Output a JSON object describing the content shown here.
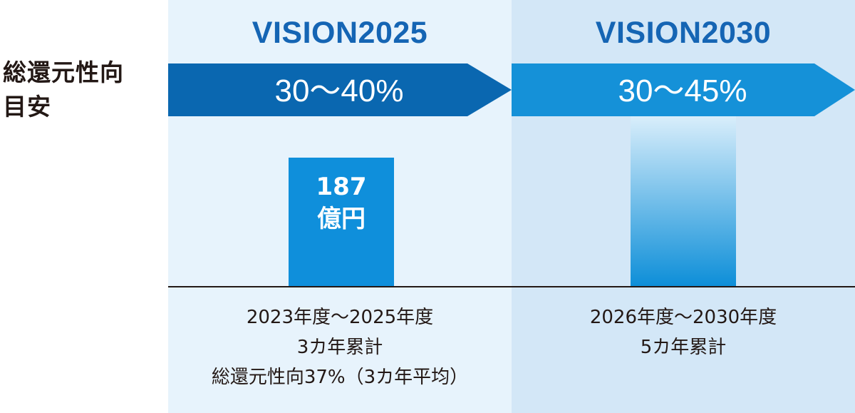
{
  "side_label": {
    "line1": "総還元性向",
    "line2": "目安"
  },
  "colors": {
    "panel_left": "#e7f3fc",
    "panel_right": "#d3e7f7",
    "title": "#1565b4",
    "arrow_left": "#0a67b0",
    "arrow_right": "#1591d8",
    "bar_2025": "#0f8fdb",
    "bar_2030_top": "#d9eefb",
    "bar_2030_bottom": "#0c8ed8",
    "baseline": "#231815"
  },
  "visions": [
    {
      "title": "VISION2025",
      "target": "30〜40%",
      "period_lines": [
        "2023年度〜2025年度",
        "3カ年累計",
        "総還元性向37%（3カ年平均）"
      ]
    },
    {
      "title": "VISION2030",
      "target": "30〜45%",
      "period_lines": [
        "2026年度〜2030年度",
        "5カ年累計"
      ]
    }
  ],
  "chart_data": {
    "type": "bar",
    "categories": [
      "VISION2025",
      "VISION2030"
    ],
    "series": [
      {
        "values": [
          187,
          null
        ],
        "labels": [
          "187",
          "億円"
        ]
      }
    ],
    "unit": "億円",
    "notes": "VISION2030 bar drawn as a faded gradient (value not stated)"
  }
}
